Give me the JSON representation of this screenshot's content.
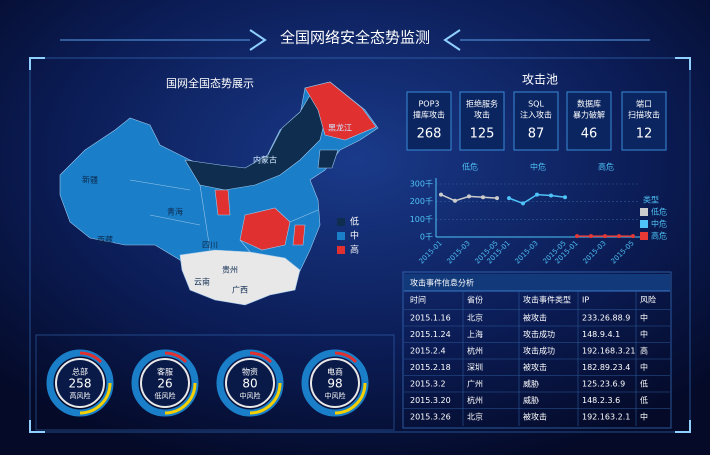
{
  "header": {
    "title": "全国网络安全态势监测"
  },
  "map": {
    "title": "国网全国态势展示",
    "legend": [
      {
        "label": "低",
        "color": "#0f2e4f"
      },
      {
        "label": "中",
        "color": "#1a7fc8"
      },
      {
        "label": "高",
        "color": "#e03030"
      }
    ],
    "provinces": [
      "新疆",
      "西藏",
      "青海",
      "四川",
      "云南",
      "贵州",
      "广西",
      "内蒙古",
      "黑龙江"
    ]
  },
  "gauges": [
    {
      "name": "总部",
      "value": "258",
      "risk": "高风险"
    },
    {
      "name": "客服",
      "value": "26",
      "risk": "低风险"
    },
    {
      "name": "物资",
      "value": "80",
      "risk": "中风险"
    },
    {
      "name": "电商",
      "value": "98",
      "risk": "中风险"
    }
  ],
  "pool": {
    "title": "攻击池",
    "cards": [
      {
        "lines": [
          "POP3",
          "撞库攻击"
        ],
        "value": "268"
      },
      {
        "lines": [
          "拒绝服务",
          "攻击"
        ],
        "value": "125"
      },
      {
        "lines": [
          "SQL",
          "注入攻击"
        ],
        "value": "87"
      },
      {
        "lines": [
          "数据库",
          "暴力破解"
        ],
        "value": "46"
      },
      {
        "lines": [
          "端口",
          "扫描攻击"
        ],
        "value": "12"
      }
    ]
  },
  "chart_data": {
    "type": "line",
    "categories": [
      "2015-01",
      null,
      "2015-03",
      null,
      "2015-05"
    ],
    "series": [
      {
        "name": "低危",
        "color": "#cccccc",
        "values": [
          240,
          205,
          230,
          225,
          220
        ]
      },
      {
        "name": "中危",
        "color": "#4fc3f7",
        "values": [
          220,
          190,
          240,
          235,
          225
        ]
      },
      {
        "name": "高危",
        "color": "#e53935",
        "values": [
          5,
          5,
          5,
          5,
          5
        ]
      }
    ],
    "legend_title": "类型",
    "ylim": [
      0,
      300
    ],
    "yticks": [
      {
        "value": 0,
        "label": "0千"
      },
      {
        "value": 100,
        "label": "100千"
      },
      {
        "value": 200,
        "label": "200千"
      },
      {
        "value": 300,
        "label": "300千"
      }
    ]
  },
  "table": {
    "title": "攻击事件信息分析",
    "columns": [
      "时间",
      "省份",
      "攻击事件类型",
      "IP",
      "风险"
    ],
    "rows": [
      [
        "2015.1.16",
        "北京",
        "被攻击",
        "233.26.88.9",
        "中"
      ],
      [
        "2015.1.24",
        "上海",
        "攻击成功",
        "148.9.4.1",
        "中"
      ],
      [
        "2015.2.4",
        "杭州",
        "攻击成功",
        "192.168.3.21",
        "高"
      ],
      [
        "2015.2.18",
        "深圳",
        "被攻击",
        "182.89.23.4",
        "中"
      ],
      [
        "2015.3.2",
        "广州",
        "威胁",
        "125.23.6.9",
        "低"
      ],
      [
        "2015.3.20",
        "杭州",
        "威胁",
        "148.2.3.6",
        "低"
      ],
      [
        "2015.3.26",
        "北京",
        "被攻击",
        "192.163.2.1",
        "中"
      ]
    ]
  }
}
